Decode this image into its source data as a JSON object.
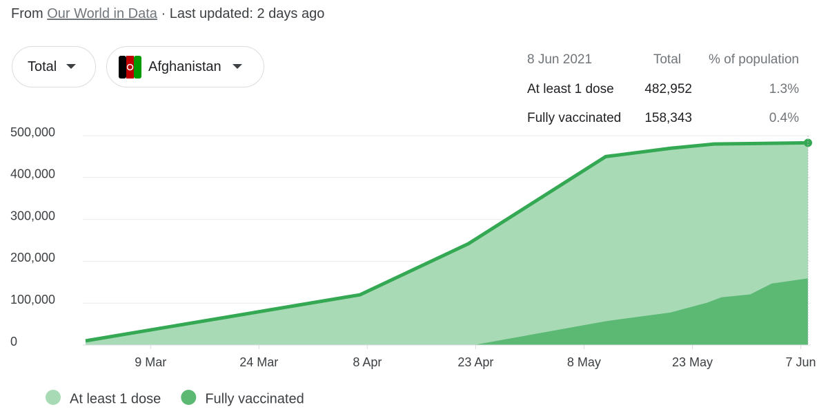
{
  "header": {
    "source_prefix": "From",
    "source": "Our World in Data",
    "updated": "· Last updated: 2 days ago"
  },
  "controls": {
    "metric": "Total",
    "country": "Afghanistan"
  },
  "summary": {
    "date": "8 Jun 2021",
    "columns": [
      "Total",
      "% of population"
    ],
    "rows": [
      [
        "At least 1 dose",
        "482,952",
        "1.3%"
      ],
      [
        "Fully vaccinated",
        "158,343",
        "0.4%"
      ]
    ]
  },
  "chart_data": {
    "type": "area",
    "xlim": [
      "28 Feb",
      "8 Jun"
    ],
    "xticks": [
      "9 Mar",
      "24 Mar",
      "8 Apr",
      "23 Apr",
      "8 May",
      "23 May",
      "7 Jun"
    ],
    "ylim": [
      0,
      500000
    ],
    "yticks": [
      0,
      {
        "value": 100000,
        "label": "100,000"
      },
      {
        "value": 200000,
        "label": "200,000"
      },
      {
        "value": 300000,
        "label": "300,000"
      },
      {
        "value": 400000,
        "label": "400,000"
      },
      {
        "value": 500000,
        "label": "500,000"
      }
    ],
    "grid": true,
    "legend": "bottom-left",
    "series": [
      {
        "name": "At least 1 dose",
        "color": "#a8dab5",
        "line_color": "#34a853",
        "x": [
          "28 Feb",
          "7 Apr",
          "22 Apr",
          "11 May",
          "20 May",
          "26 May",
          "8 Jun"
        ],
        "values": [
          10000,
          120000,
          242000,
          450000,
          470000,
          480000,
          482952
        ]
      },
      {
        "name": "Fully vaccinated",
        "color": "#5bb974",
        "x": [
          "23 Apr",
          "11 May",
          "20 May",
          "25 May",
          "27 May",
          "31 May",
          "3 Jun",
          "8 Jun"
        ],
        "values": [
          0,
          56000,
          77000,
          100000,
          113000,
          120000,
          146000,
          158343
        ]
      }
    ]
  }
}
